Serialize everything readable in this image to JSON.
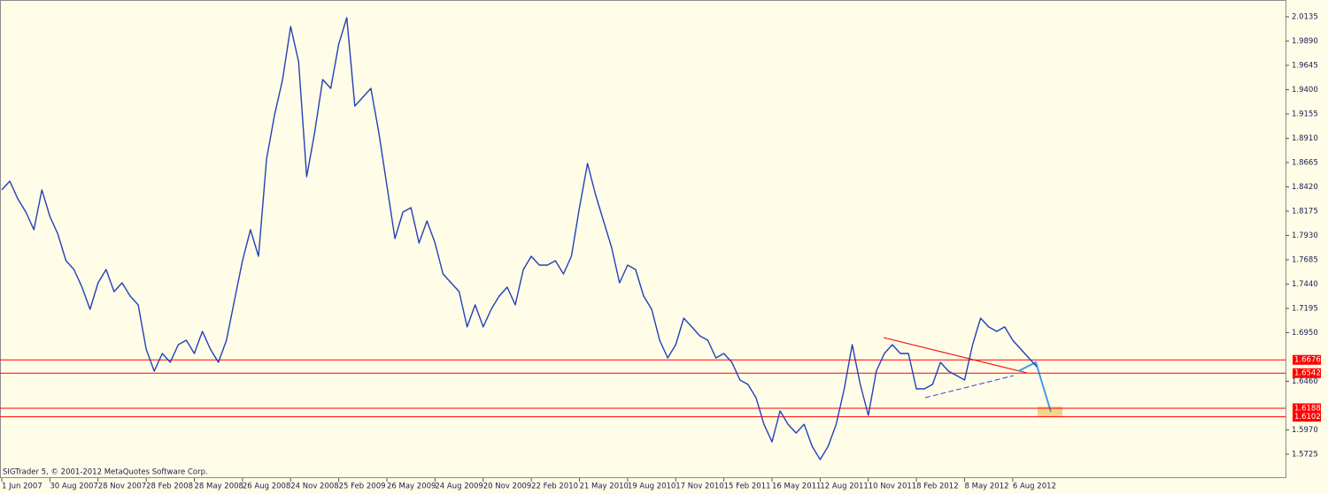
{
  "chart_data": {
    "type": "line",
    "color": "#2340b8",
    "categories": [
      "1 Jun 2007",
      null,
      null,
      null,
      null,
      null,
      "30 Aug 2007",
      null,
      null,
      null,
      null,
      null,
      "28 Nov 2007",
      null,
      null,
      null,
      null,
      null,
      "28 Feb 2008",
      null,
      null,
      null,
      null,
      null,
      "28 May 2008",
      null,
      null,
      null,
      null,
      null,
      "26 Aug 2008",
      null,
      null,
      null,
      null,
      null,
      "24 Nov 2008",
      null,
      null,
      null,
      null,
      null,
      "25 Feb 2009",
      null,
      null,
      null,
      null,
      null,
      "26 May 2009",
      null,
      null,
      null,
      null,
      null,
      "24 Aug 2009",
      null,
      null,
      null,
      null,
      null,
      "20 Nov 2009",
      null,
      null,
      null,
      null,
      null,
      "22 Feb 2010",
      null,
      null,
      null,
      null,
      null,
      "21 May 2010",
      null,
      null,
      null,
      null,
      null,
      "19 Aug 2010",
      null,
      null,
      null,
      null,
      null,
      "17 Nov 2010",
      null,
      null,
      null,
      null,
      null,
      "15 Feb 2011",
      null,
      null,
      null,
      null,
      null,
      "16 May 2011",
      null,
      null,
      null,
      null,
      null,
      "12 Aug 2011",
      null,
      null,
      null,
      null,
      null,
      "10 Nov 2011",
      null,
      null,
      null,
      null,
      null,
      "8 Feb 2012",
      null,
      null,
      null,
      null,
      null,
      "8 May 2012",
      null,
      null,
      null,
      null,
      null,
      "6 Aug 2012",
      null,
      null,
      null
    ],
    "values": [
      1.8389,
      1.8478,
      1.83,
      1.8166,
      1.7988,
      1.8389,
      1.8121,
      1.7943,
      1.7676,
      1.7587,
      1.7409,
      1.7186,
      1.7453,
      1.7587,
      1.7364,
      1.7453,
      1.7319,
      1.723,
      1.6785,
      1.6562,
      1.674,
      1.6651,
      1.6829,
      1.6874,
      1.674,
      1.6963,
      1.6785,
      1.6651,
      1.6874,
      1.7275,
      1.7676,
      1.7988,
      1.772,
      1.87,
      1.9146,
      1.9502,
      2.0037,
      1.9681,
      1.8522,
      1.8968,
      1.9502,
      1.9413,
      1.9859,
      2.0126,
      1.9235,
      1.9324,
      1.9413,
      1.8968,
      1.8433,
      1.7899,
      1.8166,
      1.821,
      1.7854,
      1.8077,
      1.7854,
      1.7542,
      1.7453,
      1.7364,
      1.7008,
      1.723,
      1.7008,
      1.7186,
      1.7319,
      1.7409,
      1.723,
      1.7587,
      1.772,
      1.7631,
      1.7631,
      1.7676,
      1.7542,
      1.772,
      1.821,
      1.8656,
      1.8344,
      1.8077,
      1.7809,
      1.7453,
      1.7631,
      1.7587,
      1.7319,
      1.7186,
      1.6874,
      1.6696,
      1.6829,
      1.7097,
      1.7008,
      1.6918,
      1.6874,
      1.6696,
      1.674,
      1.6651,
      1.6473,
      1.6428,
      1.6295,
      1.6027,
      1.5849,
      1.6161,
      1.6027,
      1.5938,
      1.6027,
      1.5805,
      1.5671,
      1.5805,
      1.6027,
      1.6384,
      1.6829,
      1.6428,
      1.6117,
      1.6562,
      1.674,
      1.6829,
      1.674,
      1.674,
      1.6384,
      1.6384,
      1.6428,
      1.6651,
      1.6562,
      1.6518,
      1.6473,
      1.6829,
      1.7097,
      1.7008,
      1.6963,
      1.7008,
      1.6874,
      1.6785,
      1.6696,
      1.6607
    ],
    "ylim": [
      1.5484,
      2.0304
    ],
    "yticks": [
      1.5725,
      {
        "value": 1.597,
        "label": "1.5970"
      },
      {
        "value": 1.646,
        "label": "1.6460"
      },
      {
        "value": 1.695,
        "label": "1.6950"
      },
      1.7195,
      {
        "value": 1.744,
        "label": "1.7440"
      },
      1.7685,
      {
        "value": 1.793,
        "label": "1.7930"
      },
      1.8175,
      {
        "value": 1.842,
        "label": "1.8420"
      },
      1.8665,
      {
        "value": 1.891,
        "label": "1.8910"
      },
      1.9155,
      {
        "value": 1.94,
        "label": "1.9400"
      },
      1.9645,
      {
        "value": 1.989,
        "label": "1.9890"
      },
      2.0135
    ],
    "levels": [
      1.6676,
      1.6542,
      1.6188,
      1.6102
    ],
    "level_color": "#ff0000",
    "footer": "SIGTrader 5, © 2001-2012 MetaQuotes Software Corp."
  }
}
